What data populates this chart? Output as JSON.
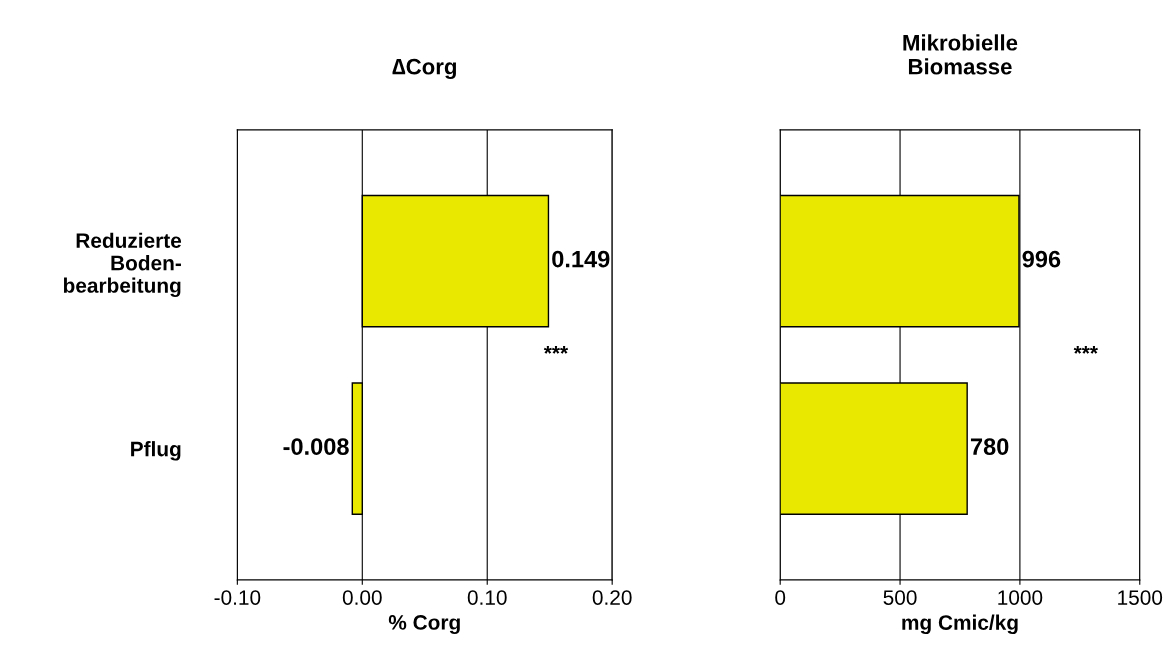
{
  "chart_data": [
    {
      "type": "bar",
      "orientation": "horizontal",
      "title": "∆Corg",
      "xlabel": "% Corg",
      "categories": [
        "Reduzierte\nBoden-\nbearbeitung",
        "Pflug"
      ],
      "values": [
        0.149,
        -0.008
      ],
      "color": "#e8e800",
      "xlim": [
        -0.1,
        0.2
      ],
      "xticks": [
        {
          "value": -0.1,
          "label": "-0.10"
        },
        {
          "value": 0,
          "label": "0.00"
        },
        {
          "value": 0.1,
          "label": "0.10"
        },
        {
          "value": 0.2,
          "label": "0.20"
        }
      ],
      "grid": "x",
      "data_labels": true,
      "annotations": [
        "***"
      ]
    },
    {
      "type": "bar",
      "orientation": "horizontal",
      "title": "Mikrobielle\nBiomasse",
      "xlabel": "mg Cmic/kg",
      "categories": [
        null,
        null
      ],
      "values": [
        996,
        780
      ],
      "color": "#e8e800",
      "xlim": [
        0,
        1500
      ],
      "xticks": [
        0,
        500,
        1000,
        1500
      ],
      "grid": "x",
      "data_labels": true,
      "tick_labels": "x",
      "annotations": [
        "***"
      ]
    }
  ]
}
